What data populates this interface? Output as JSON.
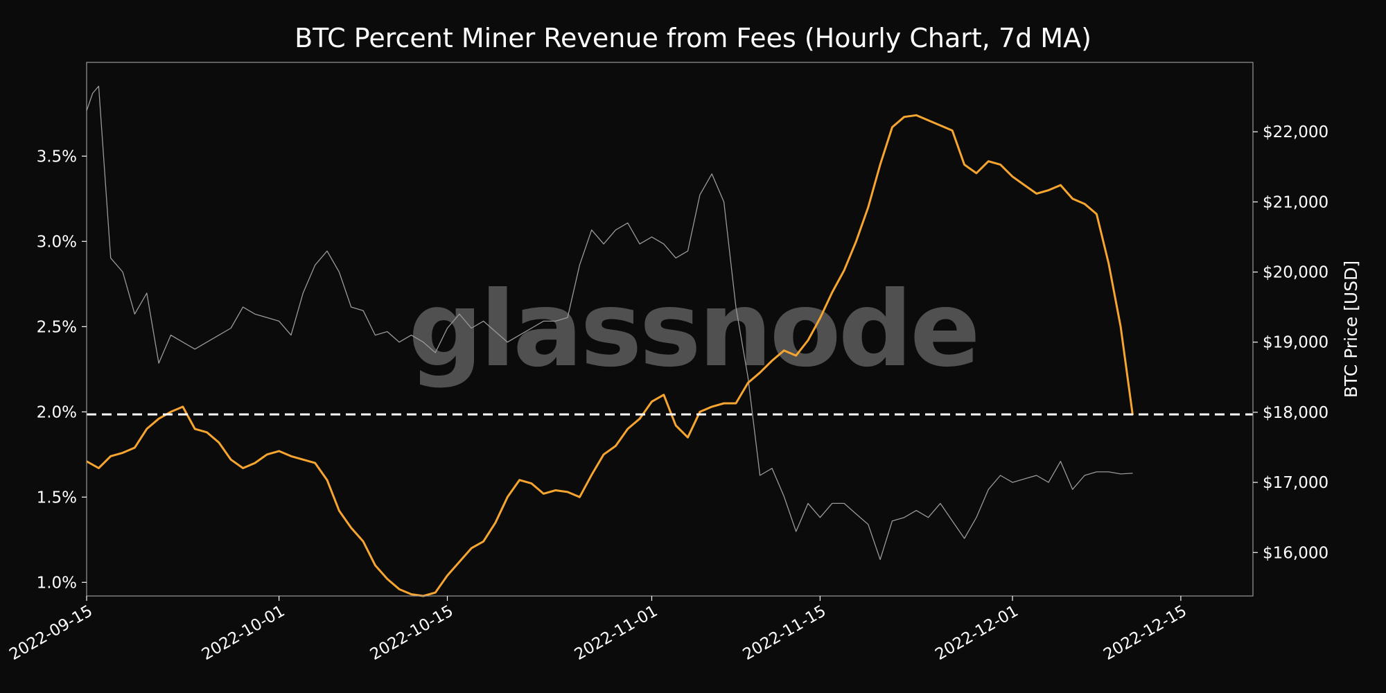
{
  "chart_data": {
    "type": "line",
    "title": "BTC Percent Miner Revenue from Fees (Hourly Chart, 7d MA)",
    "xlabel": "",
    "ylabel": "",
    "y2label": "BTC Price [USD]",
    "watermark": "glassnode",
    "grid": false,
    "x_range": [
      "2022-09-15",
      "2022-12-21"
    ],
    "x_ticks": [
      "2022-09-15",
      "2022-10-01",
      "2022-10-15",
      "2022-11-01",
      "2022-11-15",
      "2022-12-01",
      "2022-12-15"
    ],
    "y_left_range": [
      0.0092,
      0.0405
    ],
    "y_left_ticks": [
      {
        "value": 0.01,
        "label": "1.0%"
      },
      {
        "value": 0.015,
        "label": "1.5%"
      },
      {
        "value": 0.02,
        "label": "2.0%"
      },
      {
        "value": 0.025,
        "label": "2.5%"
      },
      {
        "value": 0.03,
        "label": "3.0%"
      },
      {
        "value": 0.035,
        "label": "3.5%"
      }
    ],
    "y_right_range": [
      15380,
      22990
    ],
    "y_right_ticks": [
      {
        "value": 16000,
        "label": "$16,000"
      },
      {
        "value": 17000,
        "label": "$17,000"
      },
      {
        "value": 18000,
        "label": "$18,000"
      },
      {
        "value": 19000,
        "label": "$19,000"
      },
      {
        "value": 20000,
        "label": "$20,000"
      },
      {
        "value": 21000,
        "label": "$21,000"
      },
      {
        "value": 22000,
        "label": "$22,000"
      }
    ],
    "reference_line": {
      "axis": "left",
      "value": 0.01985,
      "style": "dashed",
      "color": "#ffffff"
    },
    "series": [
      {
        "axis": "left",
        "color": "#f7a531",
        "x": [
          "2022-09-15",
          "2022-09-16",
          "2022-09-17",
          "2022-09-18",
          "2022-09-19",
          "2022-09-20",
          "2022-09-21",
          "2022-09-22",
          "2022-09-23",
          "2022-09-24",
          "2022-09-25",
          "2022-09-26",
          "2022-09-27",
          "2022-09-28",
          "2022-09-29",
          "2022-09-30",
          "2022-10-01",
          "2022-10-02",
          "2022-10-03",
          "2022-10-04",
          "2022-10-05",
          "2022-10-06",
          "2022-10-07",
          "2022-10-08",
          "2022-10-09",
          "2022-10-10",
          "2022-10-11",
          "2022-10-12",
          "2022-10-13",
          "2022-10-14",
          "2022-10-15",
          "2022-10-16",
          "2022-10-17",
          "2022-10-18",
          "2022-10-19",
          "2022-10-20",
          "2022-10-21",
          "2022-10-22",
          "2022-10-23",
          "2022-10-24",
          "2022-10-25",
          "2022-10-26",
          "2022-10-27",
          "2022-10-28",
          "2022-10-29",
          "2022-10-30",
          "2022-10-31",
          "2022-11-01",
          "2022-11-02",
          "2022-11-03",
          "2022-11-04",
          "2022-11-05",
          "2022-11-06",
          "2022-11-07",
          "2022-11-08",
          "2022-11-09",
          "2022-11-10",
          "2022-11-11",
          "2022-11-12",
          "2022-11-13",
          "2022-11-14",
          "2022-11-15",
          "2022-11-16",
          "2022-11-17",
          "2022-11-18",
          "2022-11-19",
          "2022-11-20",
          "2022-11-21",
          "2022-11-22",
          "2022-11-23",
          "2022-11-24",
          "2022-11-25",
          "2022-11-26",
          "2022-11-27",
          "2022-11-28",
          "2022-11-29",
          "2022-11-30",
          "2022-12-01",
          "2022-12-02",
          "2022-12-03",
          "2022-12-04",
          "2022-12-05",
          "2022-12-06",
          "2022-12-07",
          "2022-12-08",
          "2022-12-09",
          "2022-12-10",
          "2022-12-11"
        ],
        "values": [
          0.0171,
          0.0167,
          0.0174,
          0.0176,
          0.0179,
          0.019,
          0.0196,
          0.02,
          0.0203,
          0.019,
          0.0188,
          0.0182,
          0.0172,
          0.0167,
          0.017,
          0.0175,
          0.0177,
          0.0174,
          0.0172,
          0.017,
          0.016,
          0.0142,
          0.0132,
          0.0124,
          0.011,
          0.0102,
          0.0096,
          0.0093,
          0.0092,
          0.0094,
          0.0104,
          0.0112,
          0.012,
          0.0124,
          0.0135,
          0.015,
          0.016,
          0.0158,
          0.0152,
          0.0154,
          0.0153,
          0.015,
          0.0163,
          0.0175,
          0.018,
          0.019,
          0.0196,
          0.0206,
          0.021,
          0.0192,
          0.0185,
          0.02,
          0.0203,
          0.0205,
          0.0205,
          0.0217,
          0.0223,
          0.023,
          0.0236,
          0.0233,
          0.0242,
          0.0255,
          0.027,
          0.0283,
          0.03,
          0.032,
          0.0345,
          0.0367,
          0.0373,
          0.0374,
          0.0371,
          0.0368,
          0.0365,
          0.0345,
          0.034,
          0.0347,
          0.0345,
          0.0338,
          0.0333,
          0.0328,
          0.033,
          0.0333,
          0.0325,
          0.0322,
          0.0316,
          0.0287,
          0.025,
          0.0198
        ]
      },
      {
        "axis": "right",
        "color": "#9a9a9a",
        "x": [
          "2022-09-15",
          "2022-09-15T12",
          "2022-09-16",
          "2022-09-17",
          "2022-09-18",
          "2022-09-19",
          "2022-09-20",
          "2022-09-21",
          "2022-09-22",
          "2022-09-23",
          "2022-09-24",
          "2022-09-25",
          "2022-09-26",
          "2022-09-27",
          "2022-09-28",
          "2022-09-29",
          "2022-09-30",
          "2022-10-01",
          "2022-10-02",
          "2022-10-03",
          "2022-10-04",
          "2022-10-05",
          "2022-10-06",
          "2022-10-07",
          "2022-10-08",
          "2022-10-09",
          "2022-10-10",
          "2022-10-11",
          "2022-10-12",
          "2022-10-13",
          "2022-10-14",
          "2022-10-15",
          "2022-10-16",
          "2022-10-17",
          "2022-10-18",
          "2022-10-19",
          "2022-10-20",
          "2022-10-21",
          "2022-10-22",
          "2022-10-23",
          "2022-10-24",
          "2022-10-25",
          "2022-10-26",
          "2022-10-27",
          "2022-10-28",
          "2022-10-29",
          "2022-10-30",
          "2022-10-31",
          "2022-11-01",
          "2022-11-02",
          "2022-11-03",
          "2022-11-04",
          "2022-11-05",
          "2022-11-06",
          "2022-11-07",
          "2022-11-08",
          "2022-11-09",
          "2022-11-10",
          "2022-11-11",
          "2022-11-12",
          "2022-11-13",
          "2022-11-14",
          "2022-11-15",
          "2022-11-16",
          "2022-11-17",
          "2022-11-18",
          "2022-11-19",
          "2022-11-20",
          "2022-11-21",
          "2022-11-22",
          "2022-11-23",
          "2022-11-24",
          "2022-11-25",
          "2022-11-26",
          "2022-11-27",
          "2022-11-28",
          "2022-11-29",
          "2022-11-30",
          "2022-12-01",
          "2022-12-02",
          "2022-12-03",
          "2022-12-04",
          "2022-12-05",
          "2022-12-06",
          "2022-12-07",
          "2022-12-08",
          "2022-12-09",
          "2022-12-10",
          "2022-12-11"
        ],
        "values": [
          22300,
          22550,
          22650,
          20200,
          20000,
          19400,
          19700,
          18700,
          19100,
          19000,
          18900,
          19000,
          19100,
          19200,
          19500,
          19400,
          19350,
          19300,
          19100,
          19700,
          20100,
          20300,
          20000,
          19500,
          19450,
          19100,
          19150,
          19000,
          19100,
          19000,
          18850,
          19200,
          19400,
          19200,
          19300,
          19150,
          19000,
          19100,
          19200,
          19300,
          19300,
          19350,
          20100,
          20600,
          20400,
          20600,
          20700,
          20400,
          20500,
          20400,
          20200,
          20300,
          21100,
          21400,
          21000,
          19500,
          18500,
          17100,
          17200,
          16800,
          16300,
          16700,
          16500,
          16700,
          16700,
          16550,
          16400,
          15900,
          16450,
          16500,
          16600,
          16500,
          16700,
          16450,
          16200,
          16500,
          16900,
          17100,
          17000,
          17050,
          17100,
          17000,
          17300,
          16900,
          17100,
          17150,
          17150,
          17120,
          17130
        ]
      }
    ]
  }
}
